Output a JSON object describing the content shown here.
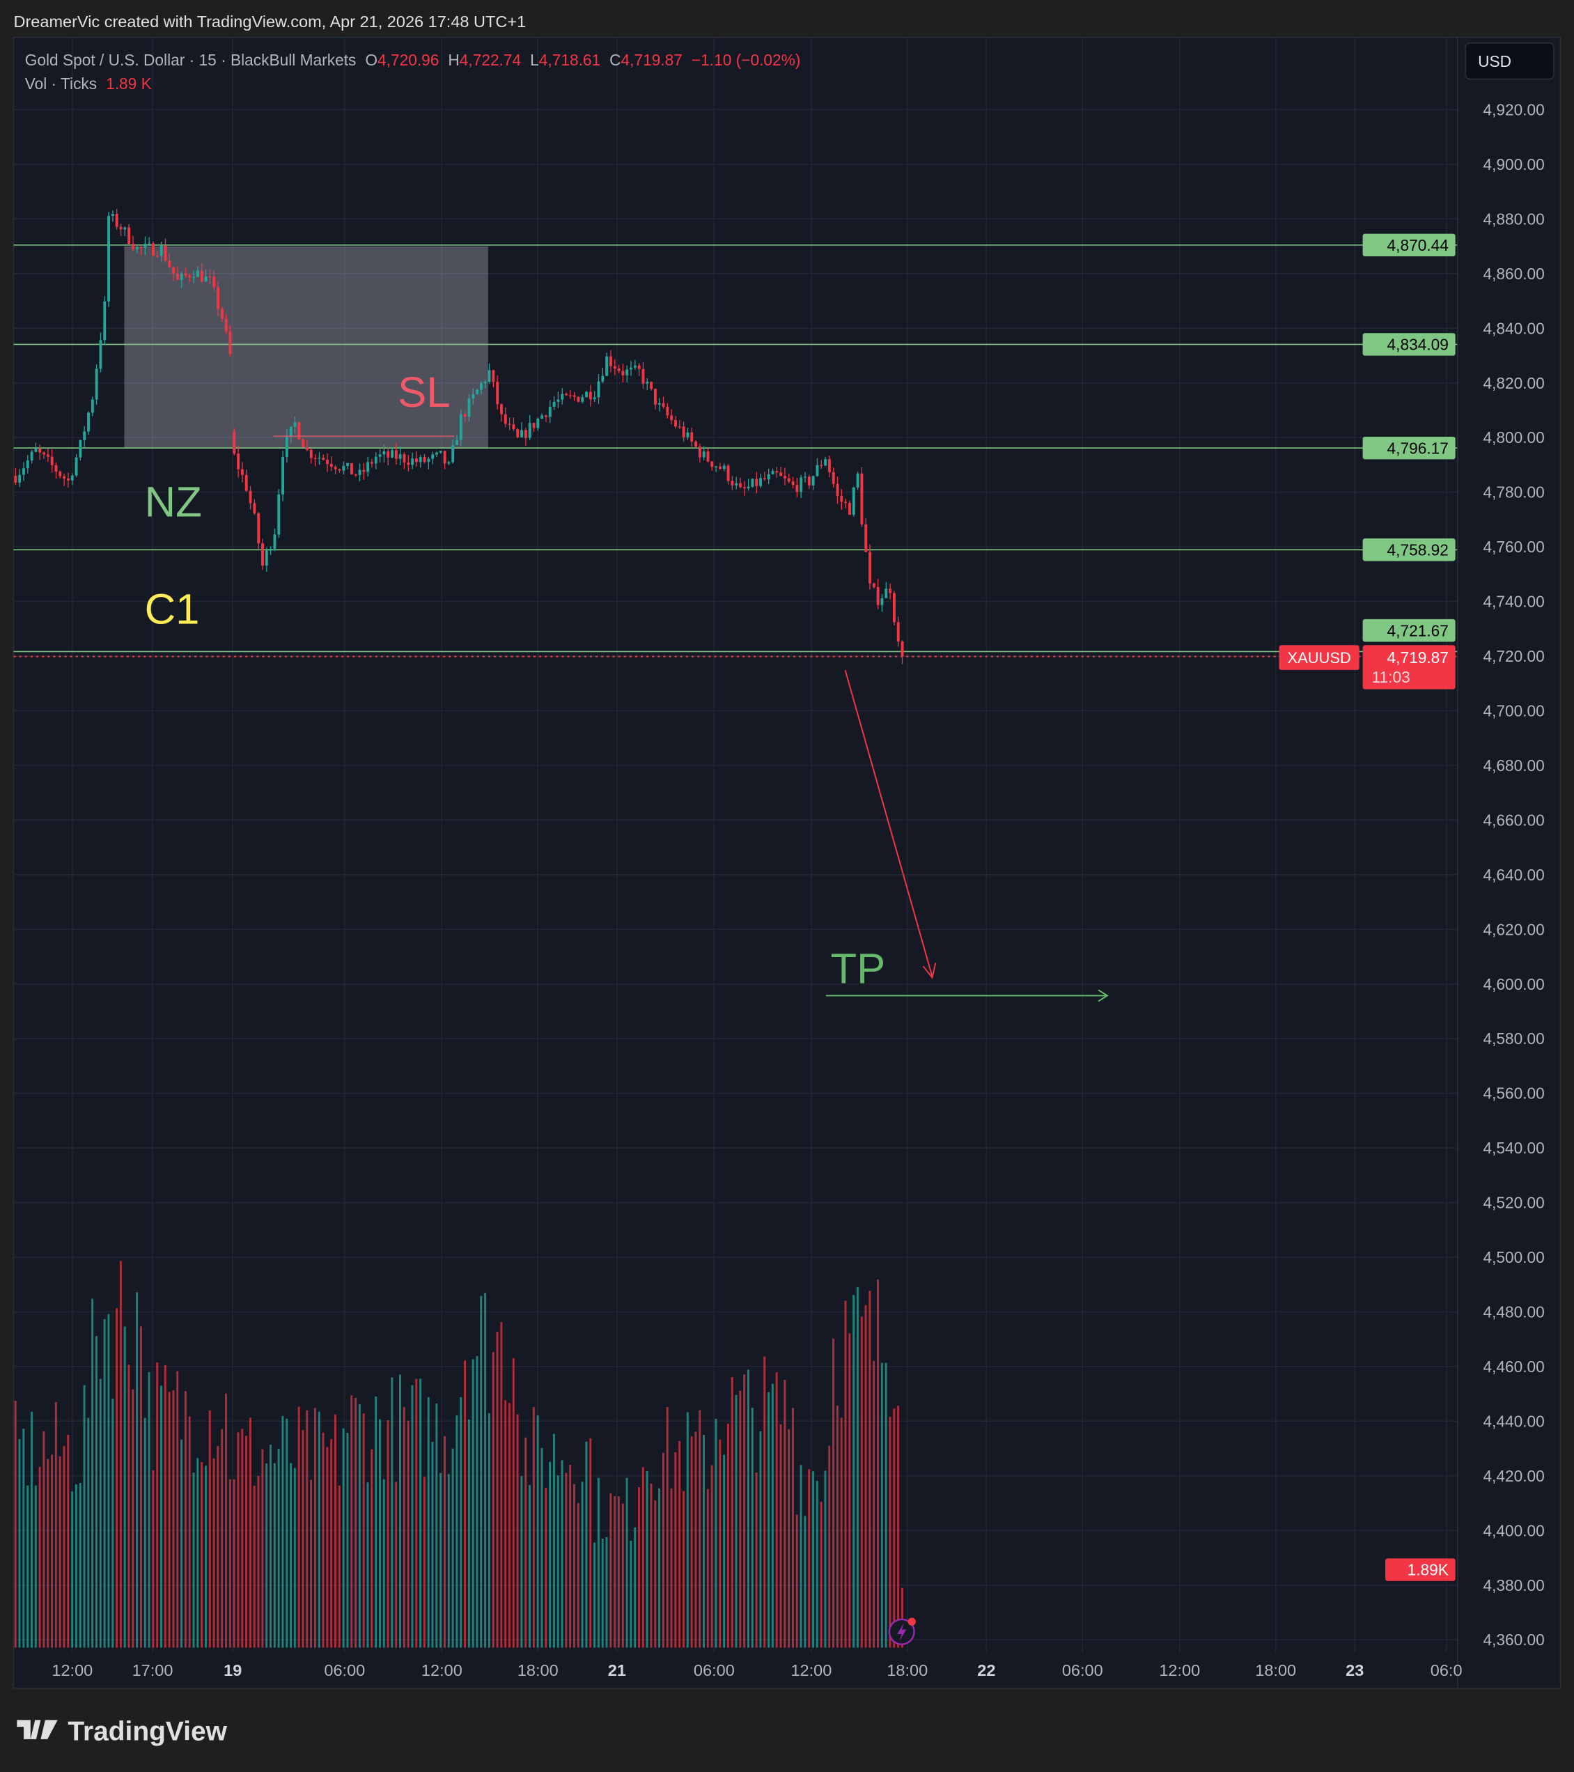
{
  "header": {
    "caption": "DreamerVic created with TradingView.com, Apr 21, 2026 17:48 UTC+1"
  },
  "legend": {
    "symbol": "Gold Spot / U.S. Dollar · 15 · BlackBull Markets",
    "o_label": "O",
    "o": "4,720.96",
    "h_label": "H",
    "h": "4,722.74",
    "l_label": "L",
    "l": "4,718.61",
    "c_label": "C",
    "c": "4,719.87",
    "change": "−1.10 (−0.02%)",
    "vol_label": "Vol · Ticks",
    "vol": "1.89 K"
  },
  "currency_button": "USD",
  "price_axis": {
    "ticks": [
      "4,920.00",
      "4,900.00",
      "4,880.00",
      "4,860.00",
      "4,840.00",
      "4,820.00",
      "4,800.00",
      "4,780.00",
      "4,760.00",
      "4,740.00",
      "4,720.00",
      "4,700.00",
      "4,680.00",
      "4,660.00",
      "4,640.00",
      "4,620.00",
      "4,600.00",
      "4,580.00",
      "4,560.00",
      "4,540.00",
      "4,520.00",
      "4,500.00",
      "4,480.00",
      "4,460.00",
      "4,440.00",
      "4,420.00",
      "4,400.00",
      "4,380.00",
      "4,360.00"
    ],
    "levels": [
      "4,870.44",
      "4,834.09",
      "4,796.17",
      "4,758.92",
      "4,721.67"
    ],
    "last_symbol": "XAUUSD",
    "last_price": "4,719.87",
    "countdown": "11:03",
    "volume_label": "1.89K"
  },
  "time_axis": {
    "ticks": [
      {
        "label": "12:00",
        "bold": false
      },
      {
        "label": "17:00",
        "bold": false
      },
      {
        "label": "19",
        "bold": true
      },
      {
        "label": "06:00",
        "bold": false
      },
      {
        "label": "12:00",
        "bold": false
      },
      {
        "label": "18:00",
        "bold": false
      },
      {
        "label": "21",
        "bold": true
      },
      {
        "label": "06:00",
        "bold": false
      },
      {
        "label": "12:00",
        "bold": false
      },
      {
        "label": "18:00",
        "bold": false
      },
      {
        "label": "22",
        "bold": true
      },
      {
        "label": "06:00",
        "bold": false
      },
      {
        "label": "12:00",
        "bold": false
      },
      {
        "label": "18:00",
        "bold": false
      },
      {
        "label": "23",
        "bold": true
      },
      {
        "label": "06:0",
        "bold": false
      }
    ]
  },
  "annotations": {
    "sl": "SL",
    "nz": "NZ",
    "c1": "C1",
    "tp": "TP"
  },
  "colors": {
    "up": "#26a69a",
    "down": "#f23645",
    "level": "#81c784",
    "sl": "#f05a68",
    "nz": "#81c784",
    "c1": "#ffee58",
    "tp": "#66bb6a",
    "alert": "#9c27b0"
  },
  "icons": {
    "alert": "lightning-icon",
    "logo": "tradingview-logo"
  },
  "footer": {
    "logo_text": "TradingView"
  },
  "chart_data": {
    "type": "candlestick",
    "timeframe": "15",
    "symbol": "XAUUSD",
    "ylim": [
      4360,
      4920
    ],
    "price_levels": [
      4870.44,
      4834.09,
      4796.17,
      4758.92,
      4721.67
    ],
    "last_price": 4719.87,
    "close_path_by_bar": [
      [
        0,
        4786
      ],
      [
        5,
        4795
      ],
      [
        13,
        4784
      ],
      [
        16,
        4797
      ],
      [
        19,
        4815
      ],
      [
        22,
        4848
      ],
      [
        23,
        4881
      ],
      [
        26,
        4877
      ],
      [
        30,
        4869
      ],
      [
        36,
        4869
      ],
      [
        40,
        4857
      ],
      [
        44,
        4861
      ],
      [
        48,
        4857
      ],
      [
        51,
        4844
      ],
      [
        53,
        4830
      ],
      [
        54,
        4793
      ],
      [
        57,
        4782
      ],
      [
        59,
        4770
      ],
      [
        61,
        4753
      ],
      [
        64,
        4766
      ],
      [
        66,
        4795
      ],
      [
        69,
        4805
      ],
      [
        72,
        4795
      ],
      [
        78,
        4791
      ],
      [
        85,
        4786
      ],
      [
        89,
        4793
      ],
      [
        94,
        4793
      ],
      [
        100,
        4791
      ],
      [
        105,
        4793
      ],
      [
        107,
        4789
      ],
      [
        110,
        4807
      ],
      [
        114,
        4817
      ],
      [
        117,
        4824
      ],
      [
        120,
        4807
      ],
      [
        124,
        4799
      ],
      [
        128,
        4805
      ],
      [
        133,
        4813
      ],
      [
        139,
        4815
      ],
      [
        143,
        4817
      ],
      [
        146,
        4829
      ],
      [
        150,
        4824
      ],
      [
        154,
        4824
      ],
      [
        159,
        4811
      ],
      [
        164,
        4803
      ],
      [
        170,
        4793
      ],
      [
        175,
        4788
      ],
      [
        179,
        4780
      ],
      [
        184,
        4784
      ],
      [
        188,
        4786
      ],
      [
        192,
        4782
      ],
      [
        196,
        4784
      ],
      [
        200,
        4793
      ],
      [
        203,
        4778
      ],
      [
        206,
        4774
      ],
      [
        208,
        4786
      ],
      [
        209,
        4770
      ],
      [
        211,
        4745
      ],
      [
        213,
        4741
      ],
      [
        216,
        4745
      ],
      [
        218,
        4724
      ],
      [
        219,
        4720
      ]
    ],
    "volume_k_by_bar": [
      [
        0,
        7.1
      ],
      [
        16,
        7.1
      ],
      [
        21,
        12
      ],
      [
        31,
        12
      ],
      [
        33,
        8.5
      ],
      [
        52,
        8.5
      ],
      [
        53,
        7
      ],
      [
        80,
        7
      ],
      [
        81,
        8
      ],
      [
        108,
        8
      ],
      [
        111,
        11
      ],
      [
        124,
        11
      ],
      [
        125,
        7
      ],
      [
        142,
        7
      ],
      [
        143,
        5
      ],
      [
        153,
        5
      ],
      [
        154,
        7
      ],
      [
        172,
        7
      ],
      [
        173,
        8.5
      ],
      [
        192,
        8.5
      ],
      [
        193,
        6.4
      ],
      [
        200,
        6.4
      ],
      [
        202,
        11
      ],
      [
        218,
        11
      ],
      [
        219,
        1.89
      ]
    ]
  }
}
